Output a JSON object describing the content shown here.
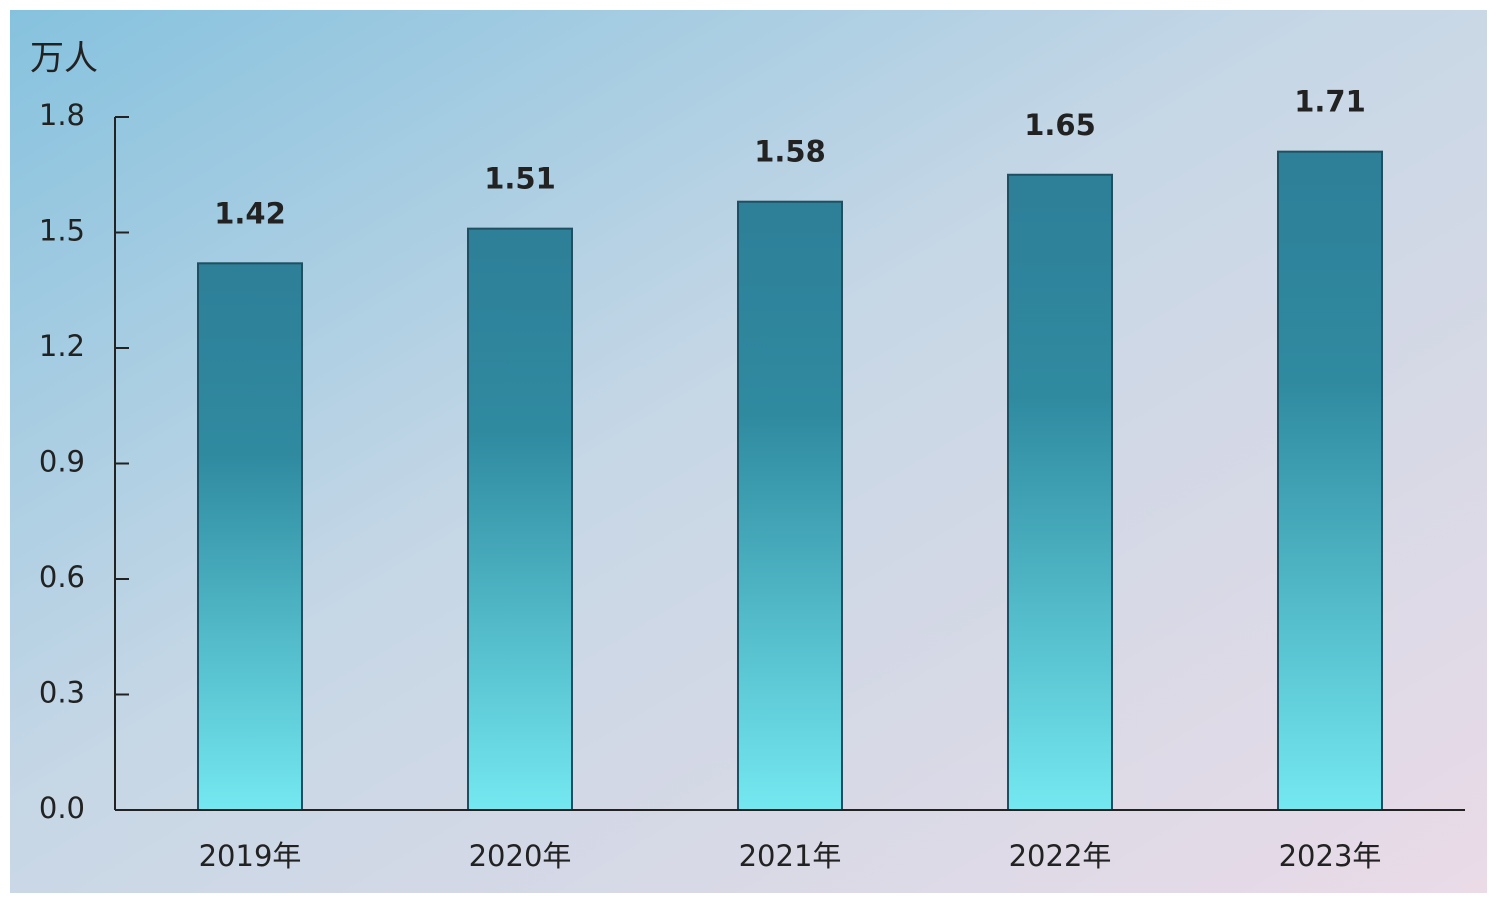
{
  "chart_data": {
    "type": "bar",
    "y_label": "万人",
    "categories": [
      "2019年",
      "2020年",
      "2021年",
      "2022年",
      "2023年"
    ],
    "values": [
      1.42,
      1.51,
      1.58,
      1.65,
      1.71
    ],
    "ylim": [
      0,
      1.8
    ],
    "yticks": [
      {
        "value": 0,
        "label": "0.0"
      },
      0.3,
      0.6,
      0.9,
      1.2,
      1.5,
      1.8
    ]
  }
}
